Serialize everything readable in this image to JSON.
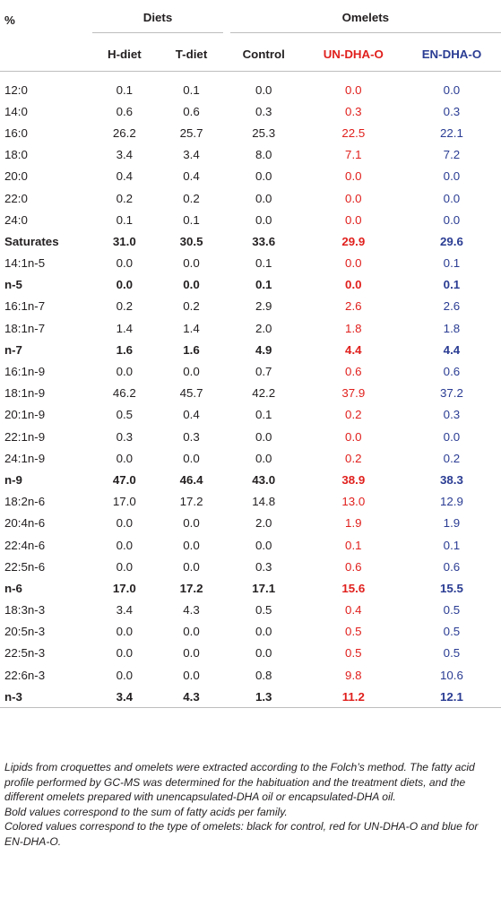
{
  "table": {
    "corner_label": "%",
    "group_headers": {
      "diets": "Diets",
      "omelets": "Omelets"
    },
    "columns": [
      "H-diet",
      "T-diet",
      "Control",
      "UN-DHA-O",
      "EN-DHA-O"
    ],
    "column_colors": {
      "UN-DHA-O": "#e0201d",
      "EN-DHA-O": "#2a3c93"
    },
    "rows": [
      {
        "label": "12:0",
        "bold": false,
        "values": [
          "0.1",
          "0.1",
          "0.0",
          "0.0",
          "0.0"
        ]
      },
      {
        "label": "14:0",
        "bold": false,
        "values": [
          "0.6",
          "0.6",
          "0.3",
          "0.3",
          "0.3"
        ]
      },
      {
        "label": "16:0",
        "bold": false,
        "values": [
          "26.2",
          "25.7",
          "25.3",
          "22.5",
          "22.1"
        ]
      },
      {
        "label": "18:0",
        "bold": false,
        "values": [
          "3.4",
          "3.4",
          "8.0",
          "7.1",
          "7.2"
        ]
      },
      {
        "label": "20:0",
        "bold": false,
        "values": [
          "0.4",
          "0.4",
          "0.0",
          "0.0",
          "0.0"
        ]
      },
      {
        "label": "22:0",
        "bold": false,
        "values": [
          "0.2",
          "0.2",
          "0.0",
          "0.0",
          "0.0"
        ]
      },
      {
        "label": "24:0",
        "bold": false,
        "values": [
          "0.1",
          "0.1",
          "0.0",
          "0.0",
          "0.0"
        ]
      },
      {
        "label": "Saturates",
        "bold": true,
        "values": [
          "31.0",
          "30.5",
          "33.6",
          "29.9",
          "29.6"
        ]
      },
      {
        "label": "14:1n-5",
        "bold": false,
        "values": [
          "0.0",
          "0.0",
          "0.1",
          "0.0",
          "0.1"
        ]
      },
      {
        "label": "n-5",
        "bold": true,
        "values": [
          "0.0",
          "0.0",
          "0.1",
          "0.0",
          "0.1"
        ]
      },
      {
        "label": "16:1n-7",
        "bold": false,
        "values": [
          "0.2",
          "0.2",
          "2.9",
          "2.6",
          "2.6"
        ]
      },
      {
        "label": "18:1n-7",
        "bold": false,
        "values": [
          "1.4",
          "1.4",
          "2.0",
          "1.8",
          "1.8"
        ]
      },
      {
        "label": "n-7",
        "bold": true,
        "values": [
          "1.6",
          "1.6",
          "4.9",
          "4.4",
          "4.4"
        ]
      },
      {
        "label": "16:1n-9",
        "bold": false,
        "values": [
          "0.0",
          "0.0",
          "0.7",
          "0.6",
          "0.6"
        ]
      },
      {
        "label": "18:1n-9",
        "bold": false,
        "values": [
          "46.2",
          "45.7",
          "42.2",
          "37.9",
          "37.2"
        ]
      },
      {
        "label": "20:1n-9",
        "bold": false,
        "values": [
          "0.5",
          "0.4",
          "0.1",
          "0.2",
          "0.3"
        ]
      },
      {
        "label": "22:1n-9",
        "bold": false,
        "values": [
          "0.3",
          "0.3",
          "0.0",
          "0.0",
          "0.0"
        ]
      },
      {
        "label": "24:1n-9",
        "bold": false,
        "values": [
          "0.0",
          "0.0",
          "0.0",
          "0.2",
          "0.2"
        ]
      },
      {
        "label": "n-9",
        "bold": true,
        "values": [
          "47.0",
          "46.4",
          "43.0",
          "38.9",
          "38.3"
        ]
      },
      {
        "label": "18:2n-6",
        "bold": false,
        "values": [
          "17.0",
          "17.2",
          "14.8",
          "13.0",
          "12.9"
        ]
      },
      {
        "label": "20:4n-6",
        "bold": false,
        "values": [
          "0.0",
          "0.0",
          "2.0",
          "1.9",
          "1.9"
        ]
      },
      {
        "label": "22:4n-6",
        "bold": false,
        "values": [
          "0.0",
          "0.0",
          "0.0",
          "0.1",
          "0.1"
        ]
      },
      {
        "label": "22:5n-6",
        "bold": false,
        "values": [
          "0.0",
          "0.0",
          "0.3",
          "0.6",
          "0.6"
        ]
      },
      {
        "label": "n-6",
        "bold": true,
        "values": [
          "17.0",
          "17.2",
          "17.1",
          "15.6",
          "15.5"
        ]
      },
      {
        "label": "18:3n-3",
        "bold": false,
        "values": [
          "3.4",
          "4.3",
          "0.5",
          "0.4",
          "0.5"
        ]
      },
      {
        "label": "20:5n-3",
        "bold": false,
        "values": [
          "0.0",
          "0.0",
          "0.0",
          "0.5",
          "0.5"
        ]
      },
      {
        "label": "22:5n-3",
        "bold": false,
        "values": [
          "0.0",
          "0.0",
          "0.0",
          "0.5",
          "0.5"
        ]
      },
      {
        "label": "22:6n-3",
        "bold": false,
        "values": [
          "0.0",
          "0.0",
          "0.8",
          "9.8",
          "10.6"
        ]
      },
      {
        "label": "n-3",
        "bold": true,
        "values": [
          "3.4",
          "4.3",
          "1.3",
          "11.2",
          "12.1"
        ]
      }
    ]
  },
  "footnotes": {
    "methods": "Lipids from croquettes and omelets were extracted according to the Folch’s method. The fatty acid profile performed by GC-MS was determined for the habituation and the treatment diets, and the different omelets prepared with unencapsulated-DHA oil or encapsulated-DHA oil.",
    "bold_note": "Bold values correspond to the sum of fatty acids per family.",
    "color_note": "Colored values correspond to the type of omelets: black for control, red for UN-DHA-O and blue for EN-DHA-O."
  }
}
